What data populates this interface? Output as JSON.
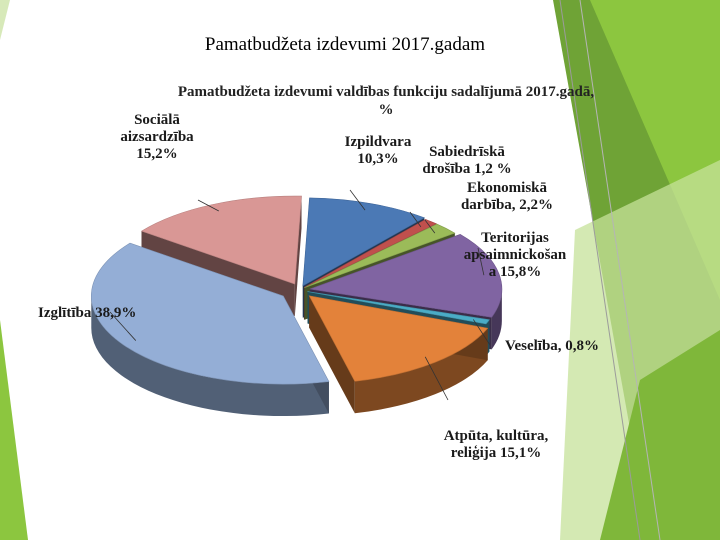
{
  "slide": {
    "title": "Pamatbudžeta izdevumi 2017.gadam"
  },
  "colors": {
    "accent_green_dark": "#5f9a2a",
    "accent_green": "#8cc63f",
    "accent_green_light": "#c6e29a"
  },
  "chart_data": {
    "type": "pie",
    "title_lines": [
      "Pamatbudžeta izdevumi valdības funkciju sadalījumā 2017.gadā,",
      "%"
    ],
    "slices": [
      {
        "label_lines": [
          "Izpildvara",
          "10,3%"
        ],
        "value": 10.3,
        "color": "#4b79b5"
      },
      {
        "label_lines": [
          "Sabiedrīskā",
          "drošība 1,2 %"
        ],
        "value": 1.2,
        "color": "#c0504d"
      },
      {
        "label_lines": [
          "Ekonomiskā",
          "darbība, 2,2%"
        ],
        "value": 2.2,
        "color": "#9bbb59"
      },
      {
        "label_lines": [
          "Teritorijas",
          "apsaimnickošan",
          "a 15,8%"
        ],
        "value": 15.8,
        "color": "#8064a2"
      },
      {
        "label_lines": [
          "Veselība, 0,8%"
        ],
        "value": 0.8,
        "color": "#4bacc6"
      },
      {
        "label_lines": [
          "Atpūta, kultūra,",
          "reliģija 15,1%"
        ],
        "value": 15.1,
        "color": "#e3823a"
      },
      {
        "label_lines": [
          "Izglītība 38,9%"
        ],
        "value": 38.9,
        "color": "#94aed6"
      },
      {
        "label_lines": [
          "Sociālā",
          "aizsardzība",
          "15,2%"
        ],
        "value": 15.2,
        "color": "#d99795"
      }
    ],
    "legend": "none"
  }
}
